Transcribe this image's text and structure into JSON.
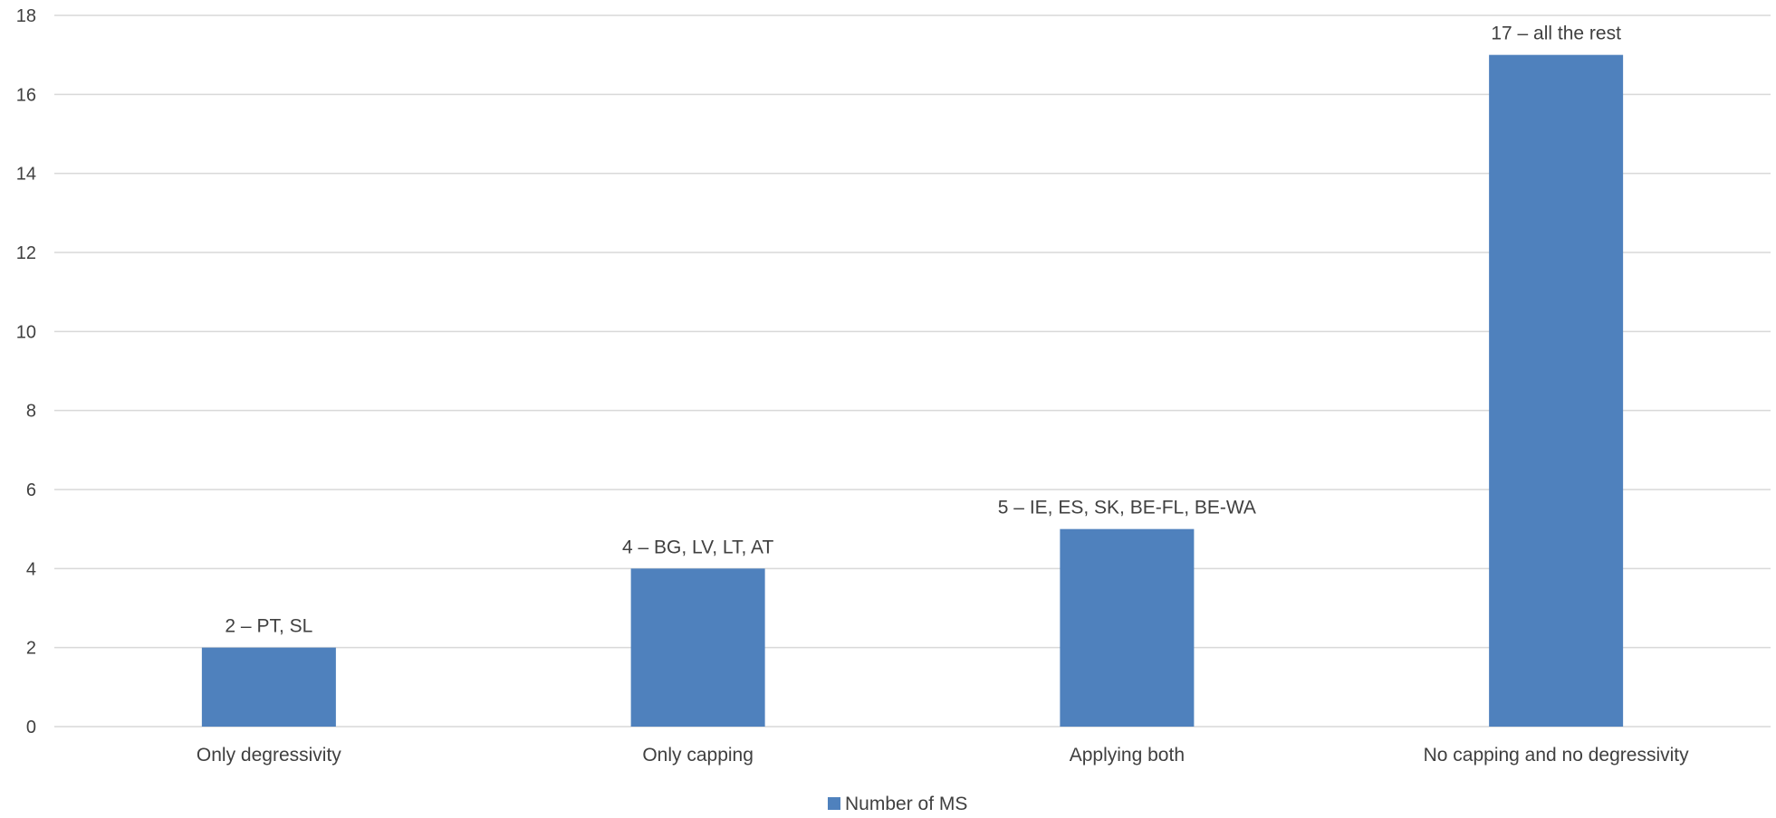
{
  "chart_data": {
    "type": "bar",
    "categories": [
      "Only degressivity",
      "Only capping",
      "Applying both",
      "No capping and no degressivity"
    ],
    "series": [
      {
        "name": "Number of MS",
        "values": [
          2,
          4,
          5,
          17
        ],
        "color": "#4f81bd"
      }
    ],
    "data_labels": [
      "2 – PT, SL",
      "4 – BG, LV, LT, AT",
      "5 – IE, ES, SK, BE-FL, BE-WA",
      "17 – all the rest"
    ],
    "y_ticks": [
      "0",
      "2",
      "4",
      "6",
      "8",
      "10",
      "12",
      "14",
      "16",
      "18"
    ],
    "ylim": [
      0,
      18
    ],
    "grid": true,
    "legend_position": "bottom-center",
    "title": "",
    "xlabel": "",
    "ylabel": ""
  }
}
